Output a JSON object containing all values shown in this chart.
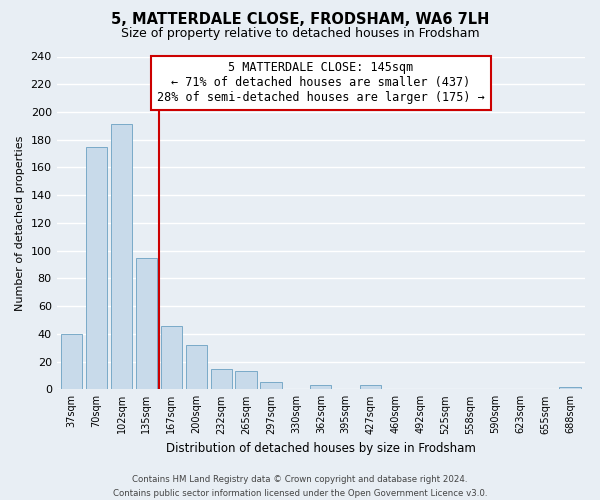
{
  "title": "5, MATTERDALE CLOSE, FRODSHAM, WA6 7LH",
  "subtitle": "Size of property relative to detached houses in Frodsham",
  "xlabel": "Distribution of detached houses by size in Frodsham",
  "ylabel": "Number of detached properties",
  "bar_labels": [
    "37sqm",
    "70sqm",
    "102sqm",
    "135sqm",
    "167sqm",
    "200sqm",
    "232sqm",
    "265sqm",
    "297sqm",
    "330sqm",
    "362sqm",
    "395sqm",
    "427sqm",
    "460sqm",
    "492sqm",
    "525sqm",
    "558sqm",
    "590sqm",
    "623sqm",
    "655sqm",
    "688sqm"
  ],
  "bar_values": [
    40,
    175,
    191,
    95,
    46,
    32,
    15,
    13,
    5,
    0,
    3,
    0,
    3,
    0,
    0,
    0,
    0,
    0,
    0,
    0,
    2
  ],
  "bar_color": "#c8daea",
  "bar_edge_color": "#7aaac8",
  "vline_x": 3.5,
  "vline_color": "#cc0000",
  "annotation_title": "5 MATTERDALE CLOSE: 145sqm",
  "annotation_line1": "← 71% of detached houses are smaller (437)",
  "annotation_line2": "28% of semi-detached houses are larger (175) →",
  "annotation_box_color": "#ffffff",
  "annotation_box_edge": "#cc0000",
  "ylim": [
    0,
    240
  ],
  "yticks": [
    0,
    20,
    40,
    60,
    80,
    100,
    120,
    140,
    160,
    180,
    200,
    220,
    240
  ],
  "footer_line1": "Contains HM Land Registry data © Crown copyright and database right 2024.",
  "footer_line2": "Contains public sector information licensed under the Open Government Licence v3.0.",
  "background_color": "#e8eef4",
  "grid_color": "#ffffff"
}
